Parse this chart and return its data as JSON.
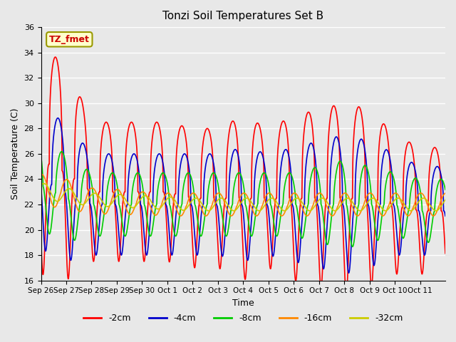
{
  "title": "Tonzi Soil Temperatures Set B",
  "xlabel": "Time",
  "ylabel": "Soil Temperature (C)",
  "ylim": [
    16,
    36
  ],
  "yticks": [
    16,
    18,
    20,
    22,
    24,
    26,
    28,
    30,
    32,
    34,
    36
  ],
  "x_labels": [
    "Sep 26",
    "Sep 27",
    "Sep 28",
    "Sep 29",
    "Sep 30",
    "Oct 1",
    "Oct 2",
    "Oct 3",
    "Oct 4",
    "Oct 5",
    "Oct 6",
    "Oct 7",
    "Oct 8",
    "Oct 9",
    "Oct 10",
    "Oct 11"
  ],
  "annotation_text": "TZ_fmet",
  "colors": {
    "-2cm": "#FF0000",
    "-4cm": "#0000CC",
    "-8cm": "#00CC00",
    "-16cm": "#FF8800",
    "-32cm": "#CCCC00"
  },
  "background_color": "#E8E8E8",
  "plot_bg_color": "#E8E8E8",
  "grid_color": "#FFFFFF",
  "num_days": 16,
  "points_per_day": 144,
  "amplitudes": {
    "-2cm": [
      9.0,
      8.5,
      5.5,
      5.5,
      5.5,
      5.5,
      5.5,
      5.5,
      6.5,
      5.5,
      6.5,
      7.0,
      7.5,
      7.0,
      5.5,
      5.0
    ],
    "-4cm": [
      5.5,
      5.5,
      4.0,
      4.0,
      4.0,
      4.0,
      4.0,
      4.0,
      4.5,
      4.0,
      4.5,
      5.0,
      5.5,
      5.0,
      4.0,
      3.5
    ],
    "-8cm": [
      3.5,
      3.5,
      2.5,
      2.5,
      2.5,
      2.5,
      2.5,
      2.5,
      2.5,
      2.5,
      2.5,
      3.0,
      3.5,
      3.0,
      2.5,
      2.5
    ],
    "-16cm": [
      1.2,
      1.2,
      1.0,
      1.0,
      0.9,
      0.9,
      0.9,
      0.9,
      0.9,
      0.9,
      0.9,
      0.9,
      0.9,
      0.9,
      0.9,
      0.9
    ],
    "-32cm": [
      0.6,
      0.6,
      0.5,
      0.5,
      0.5,
      0.5,
      0.5,
      0.5,
      0.5,
      0.5,
      0.5,
      0.5,
      0.5,
      0.5,
      0.5,
      0.5
    ]
  },
  "mean_temps": {
    "-2cm": [
      25.5,
      24.5,
      23.0,
      23.0,
      23.0,
      23.0,
      22.5,
      22.5,
      22.5,
      22.5,
      22.5,
      22.5,
      22.5,
      22.5,
      22.0,
      21.5
    ],
    "-4cm": [
      24.0,
      23.0,
      22.0,
      22.0,
      22.0,
      22.0,
      22.0,
      22.0,
      22.0,
      22.0,
      22.0,
      22.0,
      22.0,
      22.0,
      22.0,
      21.5
    ],
    "-8cm": [
      23.5,
      22.5,
      22.0,
      22.0,
      22.0,
      22.0,
      22.0,
      22.0,
      22.0,
      22.0,
      22.0,
      22.0,
      22.0,
      22.0,
      22.0,
      21.5
    ],
    "-16cm": [
      23.2,
      22.8,
      22.3,
      22.2,
      22.1,
      22.0,
      22.0,
      22.0,
      22.0,
      22.0,
      22.0,
      22.0,
      22.0,
      22.0,
      22.0,
      22.0
    ],
    "-32cm": [
      23.1,
      22.7,
      22.4,
      22.3,
      22.2,
      22.1,
      22.0,
      22.0,
      22.0,
      22.0,
      22.0,
      22.0,
      22.0,
      22.0,
      22.0,
      22.0
    ]
  },
  "phase_offsets_days": {
    "-2cm": 0.0,
    "-4cm": 0.1,
    "-8cm": 0.25,
    "-16cm": 0.45,
    "-32cm": 0.55
  },
  "sharpness": {
    "-2cm": 3.0,
    "-4cm": 2.5,
    "-8cm": 1.8,
    "-16cm": 1.2,
    "-32cm": 1.1
  }
}
